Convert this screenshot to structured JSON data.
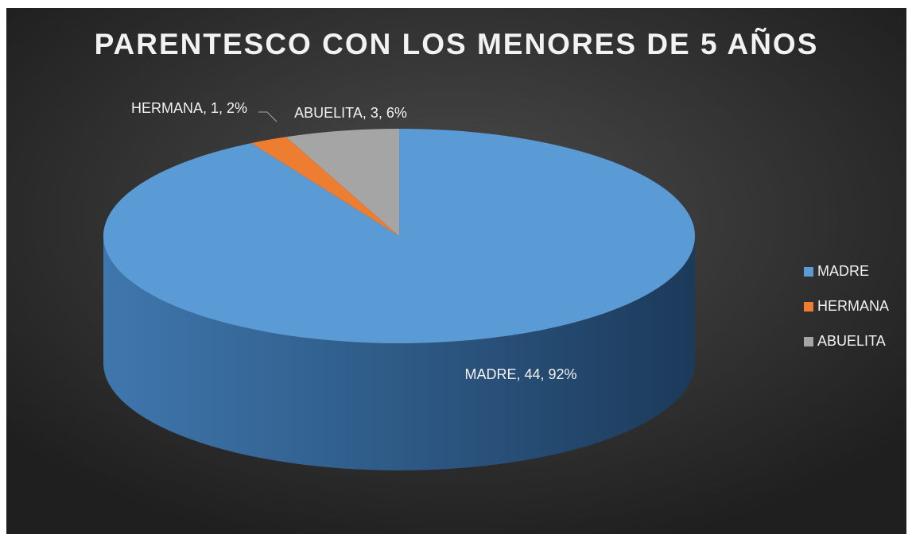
{
  "chart_data": {
    "type": "pie",
    "title": "PARENTESCO CON LOS MENORES DE 5 AÑOS",
    "categories": [
      "MADRE",
      "HERMANA",
      "ABUELITA"
    ],
    "values": [
      44,
      1,
      3
    ],
    "value_labels": [
      "MADRE, 44, 92%",
      "HERMANA, 1, 2%",
      "ABUELITA, 3, 6%"
    ],
    "colors": [
      "#5b9bd5",
      "#ed7d31",
      "#a5a5a5"
    ],
    "legend": "right"
  }
}
